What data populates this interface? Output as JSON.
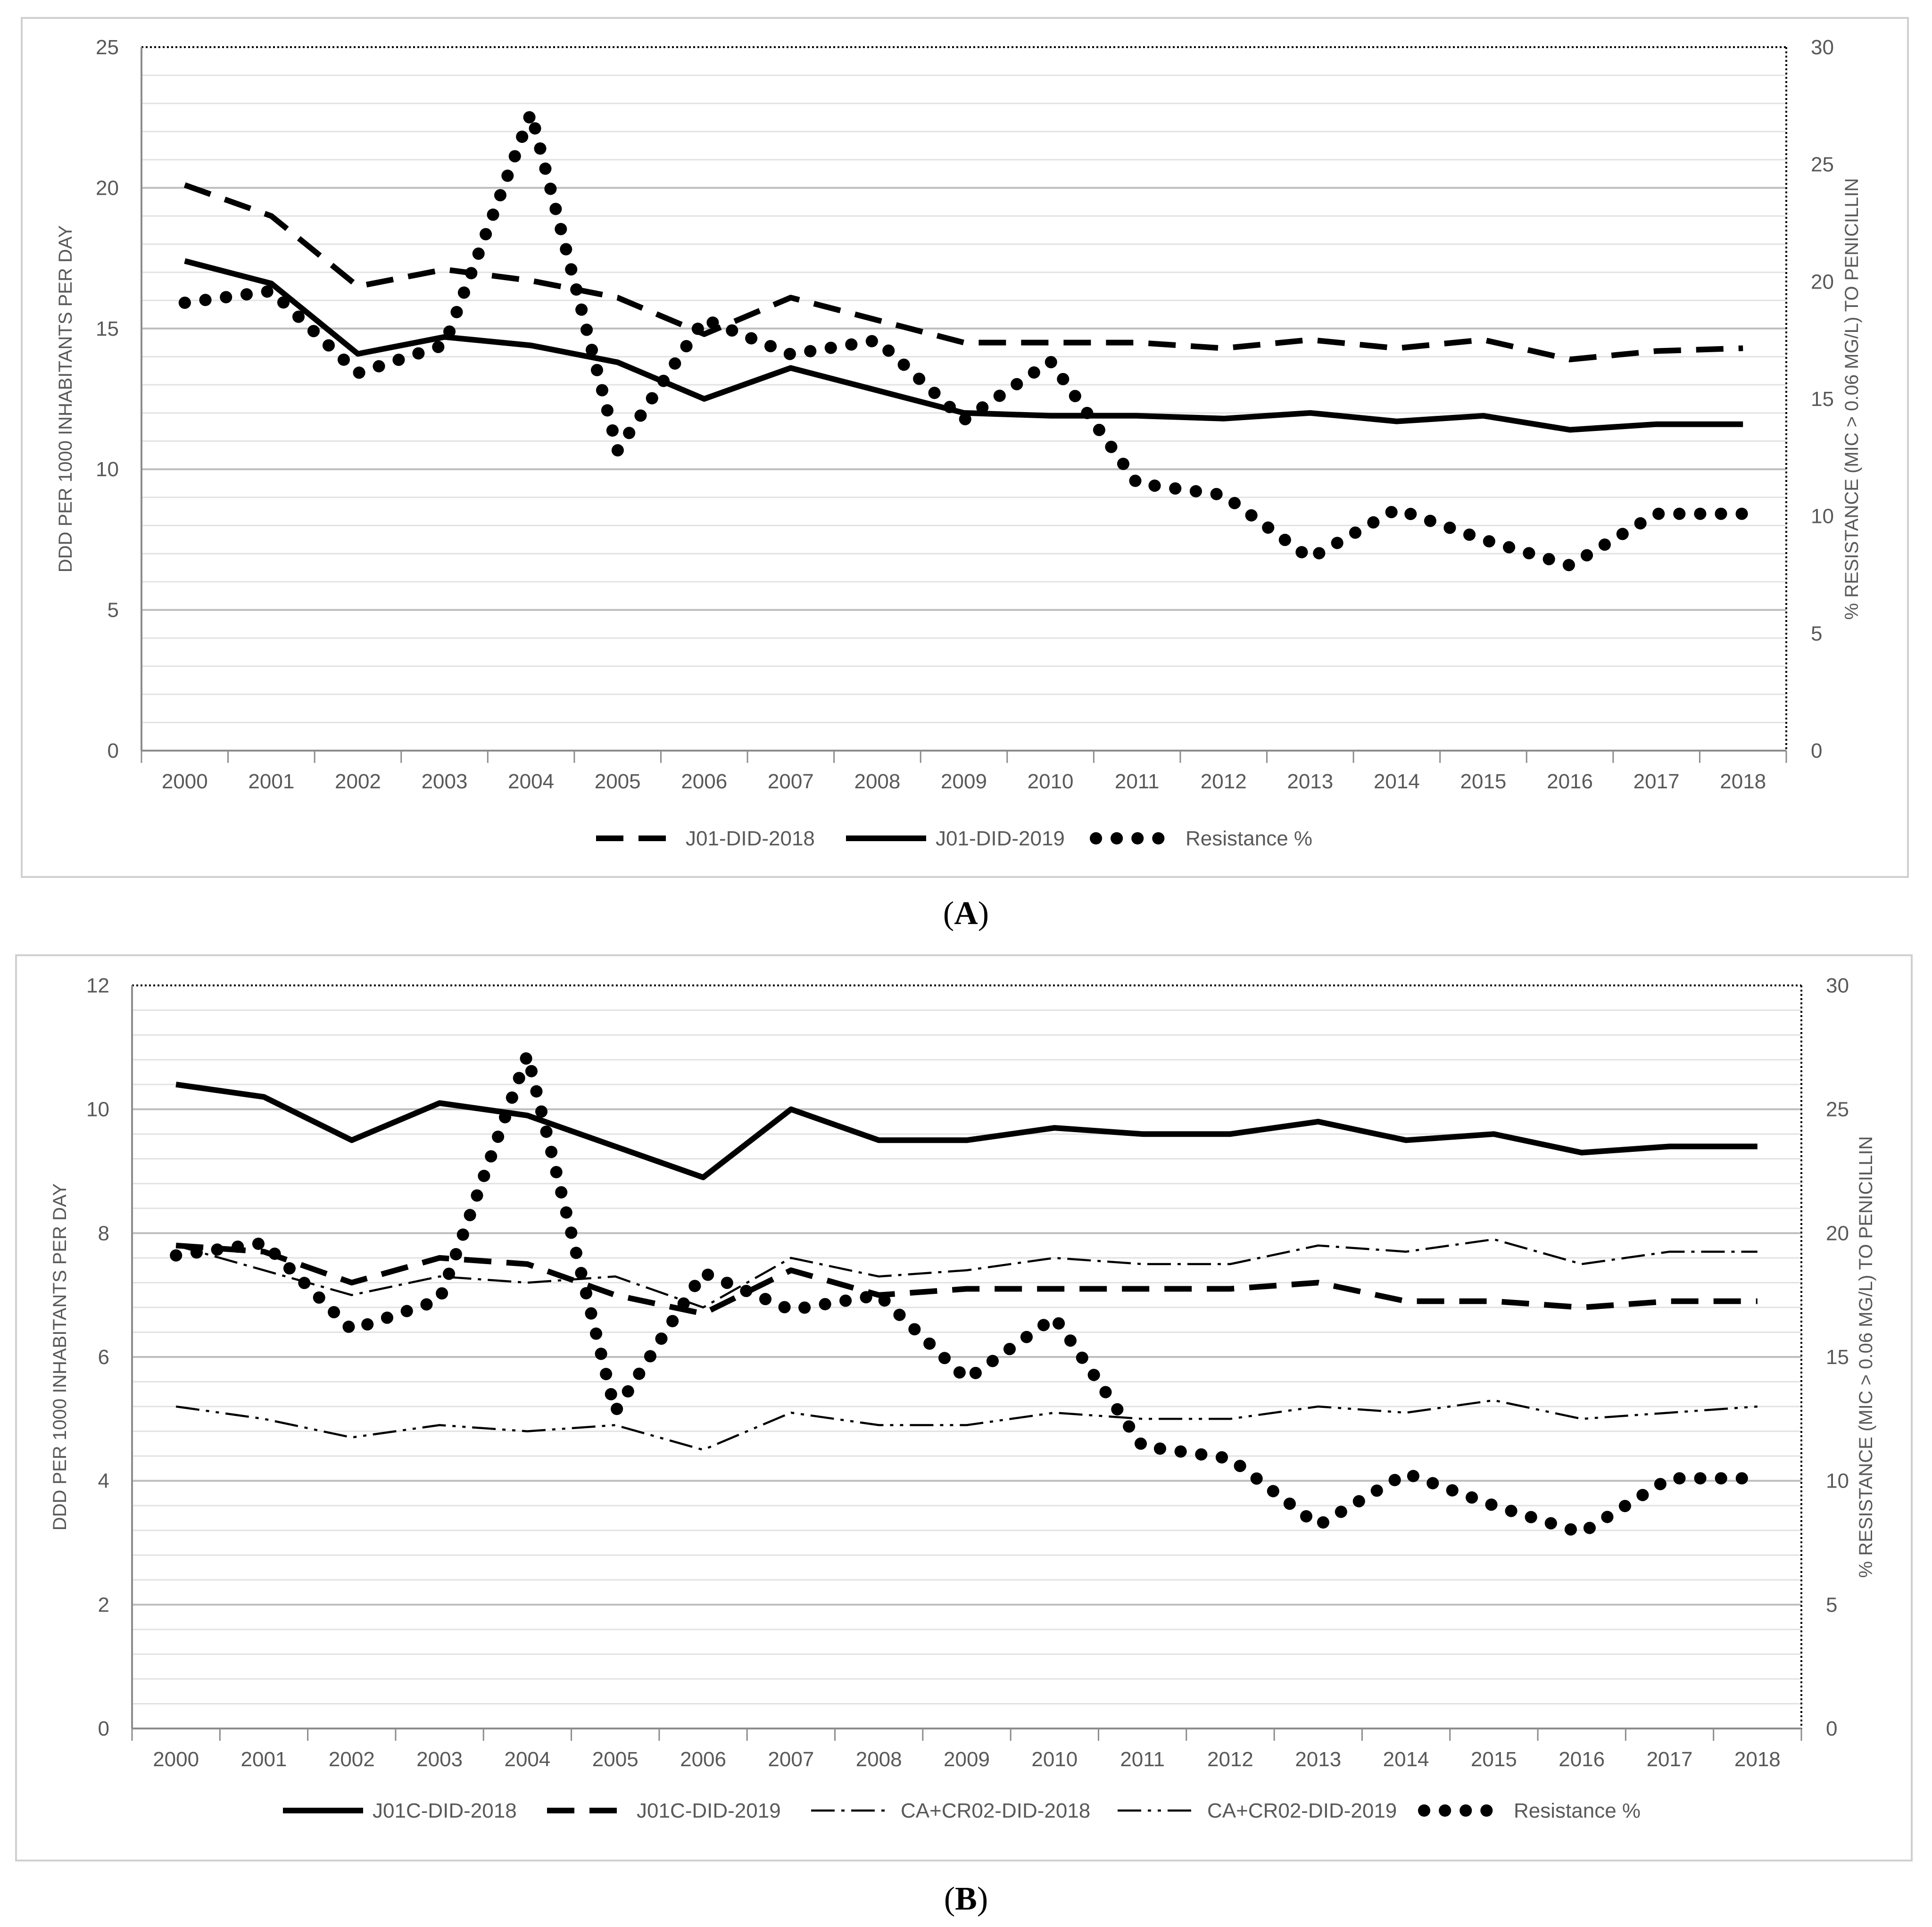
{
  "chart_data": [
    {
      "type": "line",
      "panel_label": "A",
      "title": "",
      "ylabel": "DDD PER 1000 INHABITANTS PER DAY",
      "y2label": "% RESISTANCE (MIC > 0.06 MG/L) TO PENICILLIN",
      "categories": [
        "2000",
        "2001",
        "2002",
        "2003",
        "2004",
        "2005",
        "2006",
        "2007",
        "2008",
        "2009",
        "2010",
        "2011",
        "2012",
        "2013",
        "2014",
        "2015",
        "2016",
        "2017",
        "2018"
      ],
      "ylim": [
        0,
        25
      ],
      "yticks": [
        "0",
        "5",
        "10",
        "15",
        "20",
        "25"
      ],
      "y2lim": [
        0,
        30
      ],
      "y2ticks": [
        "0",
        "5",
        "10",
        "15",
        "20",
        "25",
        "30"
      ],
      "legend_position": "bottom",
      "series": [
        {
          "name": "J01-DID-2018",
          "axis": "left",
          "style": "dash",
          "values": [
            20.1,
            19.0,
            16.5,
            17.1,
            16.7,
            16.1,
            14.8,
            16.1,
            15.3,
            14.5,
            14.5,
            14.5,
            14.3,
            14.6,
            14.3,
            14.6,
            13.9,
            14.2,
            14.3
          ]
        },
        {
          "name": "J01-DID-2019",
          "axis": "left",
          "style": "solid",
          "values": [
            17.4,
            16.6,
            14.1,
            14.7,
            14.4,
            13.8,
            12.5,
            13.6,
            12.8,
            12.0,
            11.9,
            11.9,
            11.8,
            12.0,
            11.7,
            11.9,
            11.4,
            11.6,
            11.6
          ]
        },
        {
          "name": "Resistance %",
          "axis": "right",
          "style": "dot",
          "values": [
            19.1,
            19.6,
            16.1,
            17.3,
            27.2,
            12.8,
            18.4,
            16.9,
            17.5,
            14.1,
            16.6,
            11.4,
            10.9,
            8.2,
            10.3,
            9.0,
            7.9,
            10.1,
            10.1
          ]
        }
      ]
    },
    {
      "type": "line",
      "panel_label": "B",
      "title": "",
      "ylabel": "DDD PER 1000 INHABITANTS PER DAY",
      "y2label": "% RESISTANCE (MIC > 0.06 MG/L) TO PENICILLIN",
      "categories": [
        "2000",
        "2001",
        "2002",
        "2003",
        "2004",
        "2005",
        "2006",
        "2007",
        "2008",
        "2009",
        "2010",
        "2011",
        "2012",
        "2013",
        "2014",
        "2015",
        "2016",
        "2017",
        "2018"
      ],
      "ylim": [
        0,
        12
      ],
      "yticks": [
        "0",
        "2",
        "4",
        "6",
        "8",
        "10",
        "12"
      ],
      "y2lim": [
        0,
        30
      ],
      "y2ticks": [
        "0",
        "5",
        "10",
        "15",
        "20",
        "25",
        "30"
      ],
      "legend_position": "bottom",
      "series": [
        {
          "name": "J01C-DID-2018",
          "axis": "left",
          "style": "solid",
          "values": [
            10.4,
            10.2,
            9.5,
            10.1,
            9.9,
            9.4,
            8.9,
            10.0,
            9.5,
            9.5,
            9.7,
            9.6,
            9.6,
            9.8,
            9.5,
            9.6,
            9.3,
            9.4,
            9.4
          ]
        },
        {
          "name": "J01C-DID-2019",
          "axis": "left",
          "style": "dash",
          "values": [
            7.8,
            7.7,
            7.2,
            7.6,
            7.5,
            7.0,
            6.7,
            7.4,
            7.0,
            7.1,
            7.1,
            7.1,
            7.1,
            7.2,
            6.9,
            6.9,
            6.8,
            6.9,
            6.9
          ]
        },
        {
          "name": "CA+CR02-DID-2018",
          "axis": "left",
          "style": "dashdot",
          "values": [
            7.8,
            7.4,
            7.0,
            7.3,
            7.2,
            7.3,
            6.8,
            7.6,
            7.3,
            7.4,
            7.6,
            7.5,
            7.5,
            7.8,
            7.7,
            7.9,
            7.5,
            7.7,
            7.7
          ]
        },
        {
          "name": "CA+CR02-DID-2019",
          "axis": "left",
          "style": "dashdotdot",
          "values": [
            5.2,
            5.0,
            4.7,
            4.9,
            4.8,
            4.9,
            4.5,
            5.1,
            4.9,
            4.9,
            5.1,
            5.0,
            5.0,
            5.2,
            5.1,
            5.3,
            5.0,
            5.1,
            5.2
          ]
        },
        {
          "name": "Resistance %",
          "axis": "right",
          "style": "dot",
          "values": [
            19.1,
            19.6,
            16.1,
            17.3,
            27.2,
            12.8,
            18.4,
            16.9,
            17.5,
            14.1,
            16.6,
            11.4,
            10.9,
            8.2,
            10.3,
            9.0,
            7.9,
            10.1,
            10.1
          ]
        }
      ]
    }
  ],
  "captions": {
    "a": {
      "open": "(",
      "label": "A",
      "close": ")"
    },
    "b": {
      "open": "(",
      "label": "B",
      "close": ")"
    }
  }
}
